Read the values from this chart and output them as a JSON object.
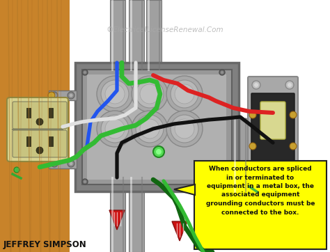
{
  "watermark": "©ElectricalLicenseRenewal.Com",
  "author": "JEFFREY SIMPSON",
  "annotation_text": "When conductors are spliced\nin or terminated to\nequipment in a metal box, the\nassociated equipment\ngrounding conductors must be\nconnected to the box.",
  "bg_color": "#ffffff",
  "wood_light": "#c8832a",
  "wood_dark": "#a06020",
  "wood_grain": "#b07828",
  "box_outer": "#808080",
  "box_mid": "#686868",
  "box_inner": "#989898",
  "box_inner2": "#b0b0b0",
  "conduit_light": "#c8c8c8",
  "conduit_mid": "#a0a0a0",
  "conduit_dark": "#787878",
  "outlet_body": "#d8d490",
  "outlet_face": "#c8c480",
  "outlet_slot": "#3a3820",
  "switch_plate": "#a8a8a8",
  "switch_body": "#282828",
  "switch_toggle": "#d8d890",
  "wire_red": "#dd2222",
  "wire_black": "#111111",
  "wire_white": "#e0e0e0",
  "wire_green_lt": "#33bb33",
  "wire_green_dk": "#116611",
  "wire_blue": "#2255ee",
  "annotation_bg": "#ffff00",
  "annotation_border": "#222222",
  "arrow_yellow": "#dddd00",
  "screw_gold": "#c8a030",
  "screw_silver": "#b0b0b0"
}
